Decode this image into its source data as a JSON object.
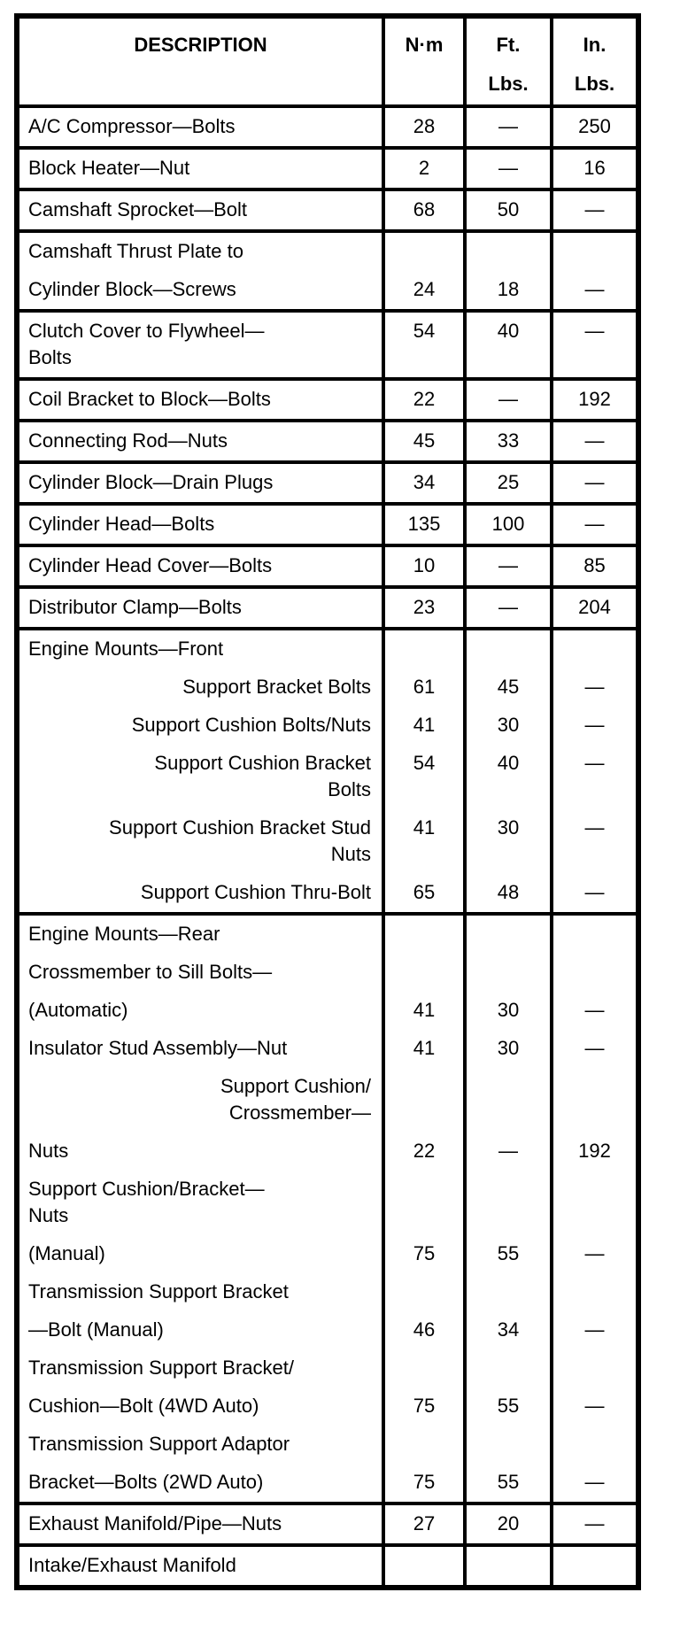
{
  "page": {
    "background_color": "#ffffff",
    "text_color": "#000000",
    "border_color": "#000000"
  },
  "table": {
    "header": {
      "description": "DESCRIPTION",
      "nm": "N·m",
      "ft_lbs": "Ft.\nLbs.",
      "in_lbs": "In.\nLbs."
    },
    "groups": [
      {
        "rows": [
          {
            "desc": "A/C Compressor—Bolts",
            "nm": "28",
            "ft": "—",
            "in": "250"
          }
        ]
      },
      {
        "rows": [
          {
            "desc": "Block Heater—Nut",
            "nm": "2",
            "ft": "—",
            "in": "16"
          }
        ]
      },
      {
        "rows": [
          {
            "desc": "Camshaft Sprocket—Bolt",
            "nm": "68",
            "ft": "50",
            "in": "—"
          }
        ]
      },
      {
        "rows": [
          {
            "desc": "Camshaft Thrust Plate to",
            "nm": "",
            "ft": "",
            "in": ""
          },
          {
            "desc": "Cylinder Block—Screws",
            "nm": "24",
            "ft": "18",
            "in": "—"
          }
        ]
      },
      {
        "rows": [
          {
            "desc": "Clutch Cover to Flywheel—\nBolts",
            "nm": "54",
            "ft": "40",
            "in": "—"
          }
        ]
      },
      {
        "rows": [
          {
            "desc": "Coil Bracket to Block—Bolts",
            "nm": "22",
            "ft": "—",
            "in": "192"
          }
        ]
      },
      {
        "rows": [
          {
            "desc": "Connecting Rod—Nuts",
            "nm": "45",
            "ft": "33",
            "in": "—"
          }
        ]
      },
      {
        "rows": [
          {
            "desc": "Cylinder Block—Drain Plugs",
            "nm": "34",
            "ft": "25",
            "in": "—"
          }
        ]
      },
      {
        "rows": [
          {
            "desc": "Cylinder Head—Bolts",
            "nm": "135",
            "ft": "100",
            "in": "—"
          }
        ]
      },
      {
        "rows": [
          {
            "desc": "Cylinder Head Cover—Bolts",
            "nm": "10",
            "ft": "—",
            "in": "85"
          }
        ]
      },
      {
        "rows": [
          {
            "desc": "Distributor Clamp—Bolts",
            "nm": "23",
            "ft": "—",
            "in": "204"
          }
        ]
      },
      {
        "rows": [
          {
            "desc": "Engine Mounts—Front",
            "nm": "",
            "ft": "",
            "in": ""
          },
          {
            "desc": "Support Bracket Bolts",
            "align": "right",
            "nm": "61",
            "ft": "45",
            "in": "—"
          },
          {
            "desc": "Support Cushion Bolts/Nuts",
            "align": "right",
            "nm": "41",
            "ft": "30",
            "in": "—"
          },
          {
            "desc": "Support Cushion Bracket\nBolts",
            "align": "right",
            "nm": "54",
            "ft": "40",
            "in": "—"
          },
          {
            "desc": "Support Cushion Bracket Stud\nNuts",
            "align": "right",
            "nm": "41",
            "ft": "30",
            "in": "—"
          },
          {
            "desc": "Support Cushion Thru-Bolt",
            "align": "right",
            "nm": "65",
            "ft": "48",
            "in": "—"
          }
        ]
      },
      {
        "rows": [
          {
            "desc": "Engine Mounts—Rear",
            "nm": "",
            "ft": "",
            "in": ""
          },
          {
            "desc": "Crossmember to Sill Bolts—",
            "nm": "",
            "ft": "",
            "in": ""
          },
          {
            "desc": "(Automatic)",
            "nm": "41",
            "ft": "30",
            "in": "—"
          },
          {
            "desc": "Insulator Stud Assembly—Nut",
            "nm": "41",
            "ft": "30",
            "in": "—"
          },
          {
            "desc": "Support Cushion/\nCrossmember—",
            "align": "right",
            "nm": "",
            "ft": "",
            "in": ""
          },
          {
            "desc": "Nuts",
            "nm": "22",
            "ft": "—",
            "in": "192"
          },
          {
            "desc": "Support Cushion/Bracket—\nNuts",
            "nm": "",
            "ft": "",
            "in": ""
          },
          {
            "desc": "(Manual)",
            "nm": "75",
            "ft": "55",
            "in": "—"
          },
          {
            "desc": "Transmission Support Bracket",
            "nm": "",
            "ft": "",
            "in": ""
          },
          {
            "desc": "—Bolt (Manual)",
            "nm": "46",
            "ft": "34",
            "in": "—"
          },
          {
            "desc": "Transmission Support Bracket/",
            "nm": "",
            "ft": "",
            "in": ""
          },
          {
            "desc": "Cushion—Bolt (4WD Auto)",
            "nm": "75",
            "ft": "55",
            "in": "—"
          },
          {
            "desc": "Transmission Support Adaptor",
            "nm": "",
            "ft": "",
            "in": ""
          },
          {
            "desc": "Bracket—Bolts (2WD Auto)",
            "nm": "75",
            "ft": "55",
            "in": "—"
          }
        ]
      },
      {
        "rows": [
          {
            "desc": "Exhaust Manifold/Pipe—Nuts",
            "nm": "27",
            "ft": "20",
            "in": "—"
          }
        ]
      },
      {
        "rows": [
          {
            "desc": "Intake/Exhaust Manifold",
            "nm": "",
            "ft": "",
            "in": ""
          }
        ]
      }
    ]
  }
}
